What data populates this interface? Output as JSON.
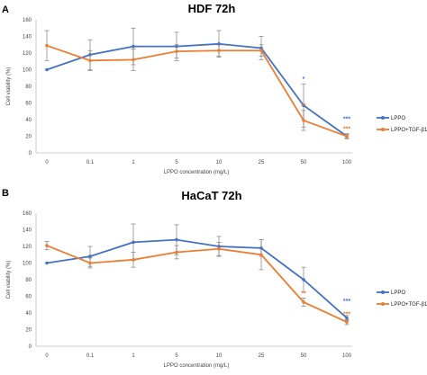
{
  "chart_data": [
    {
      "type": "line",
      "panel": "A",
      "title": "HDF 72h",
      "xlabel": "LPPO concentration (mg/L)",
      "ylabel": "Cell viability (%)",
      "categories": [
        "0",
        "0.1",
        "1",
        "5",
        "10",
        "25",
        "50",
        "100"
      ],
      "ylim": [
        0,
        160
      ],
      "yticks": [
        "0",
        "20",
        "40",
        "60",
        "80",
        "100",
        "120",
        "140",
        "160"
      ],
      "grid": false,
      "legend_position": "right",
      "series": [
        {
          "name": "LPPO",
          "color": "#4472c4",
          "values": [
            100,
            118,
            128,
            128,
            131,
            126,
            57,
            20
          ],
          "errors": [
            0,
            18,
            22,
            17,
            16,
            14,
            26,
            3
          ],
          "sig": [
            "",
            "",
            "",
            "",
            "",
            "",
            "*",
            "***"
          ]
        },
        {
          "name": "LPPO+TGF-β1",
          "color": "#ed7d31",
          "values": [
            129,
            111,
            112,
            122,
            123,
            123,
            39,
            20
          ],
          "errors": [
            18,
            12,
            13,
            8,
            7,
            7,
            12,
            2
          ],
          "sig": [
            "",
            "",
            "",
            "",
            "",
            "",
            "**",
            "***"
          ]
        }
      ]
    },
    {
      "type": "line",
      "panel": "B",
      "title": "HaCaT 72h",
      "xlabel": "LPPO concentration (mg/L)",
      "ylabel": "Cell viability (%)",
      "categories": [
        "0",
        "0.1",
        "1",
        "5",
        "10",
        "25",
        "50",
        "100"
      ],
      "ylim": [
        0,
        160
      ],
      "yticks": [
        "0",
        "20",
        "40",
        "60",
        "80",
        "100",
        "120",
        "140",
        "160"
      ],
      "grid": false,
      "legend_position": "right",
      "series": [
        {
          "name": "LPPO",
          "color": "#4472c4",
          "values": [
            100,
            108,
            125,
            128,
            120,
            118,
            80,
            34
          ],
          "errors": [
            0,
            12,
            22,
            18,
            12,
            10,
            15,
            3
          ],
          "sig": [
            "",
            "",
            "",
            "",
            "",
            "",
            "",
            "***"
          ]
        },
        {
          "name": "LPPO+TGF-β1",
          "color": "#ed7d31",
          "values": [
            121,
            100,
            104,
            113,
            117,
            110,
            53,
            29
          ],
          "errors": [
            5,
            6,
            9,
            8,
            8,
            18,
            5,
            3
          ],
          "sig": [
            "",
            "",
            "",
            "",
            "",
            "",
            "**",
            "***"
          ]
        }
      ]
    }
  ]
}
